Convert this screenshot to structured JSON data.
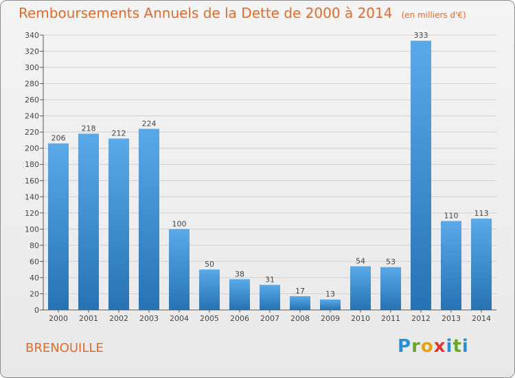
{
  "chart_data": {
    "type": "bar",
    "title": "Remboursements Annuels de la Dette de 2000 à 2014",
    "unit": "(en milliers d'€)",
    "categories": [
      "2000",
      "2001",
      "2002",
      "2003",
      "2004",
      "2005",
      "2006",
      "2007",
      "2008",
      "2009",
      "2010",
      "2011",
      "2012",
      "2013",
      "2014"
    ],
    "values": [
      206,
      218,
      212,
      224,
      100,
      50,
      38,
      31,
      17,
      13,
      54,
      53,
      333,
      110,
      113
    ],
    "ylim": [
      0,
      340
    ],
    "yticks": [
      0,
      20,
      40,
      60,
      80,
      100,
      120,
      140,
      160,
      180,
      200,
      220,
      240,
      260,
      280,
      300,
      320,
      340
    ],
    "xlabel": "",
    "ylabel": "",
    "grid": true,
    "colors": {
      "bar_light": "#5aa9e8",
      "bar_dark": "#2672b5",
      "grid": "#cfcfcf",
      "title": "#e36a2b"
    }
  },
  "footer": {
    "commune": "BRENOUILLE",
    "brand": "Proxiti"
  }
}
